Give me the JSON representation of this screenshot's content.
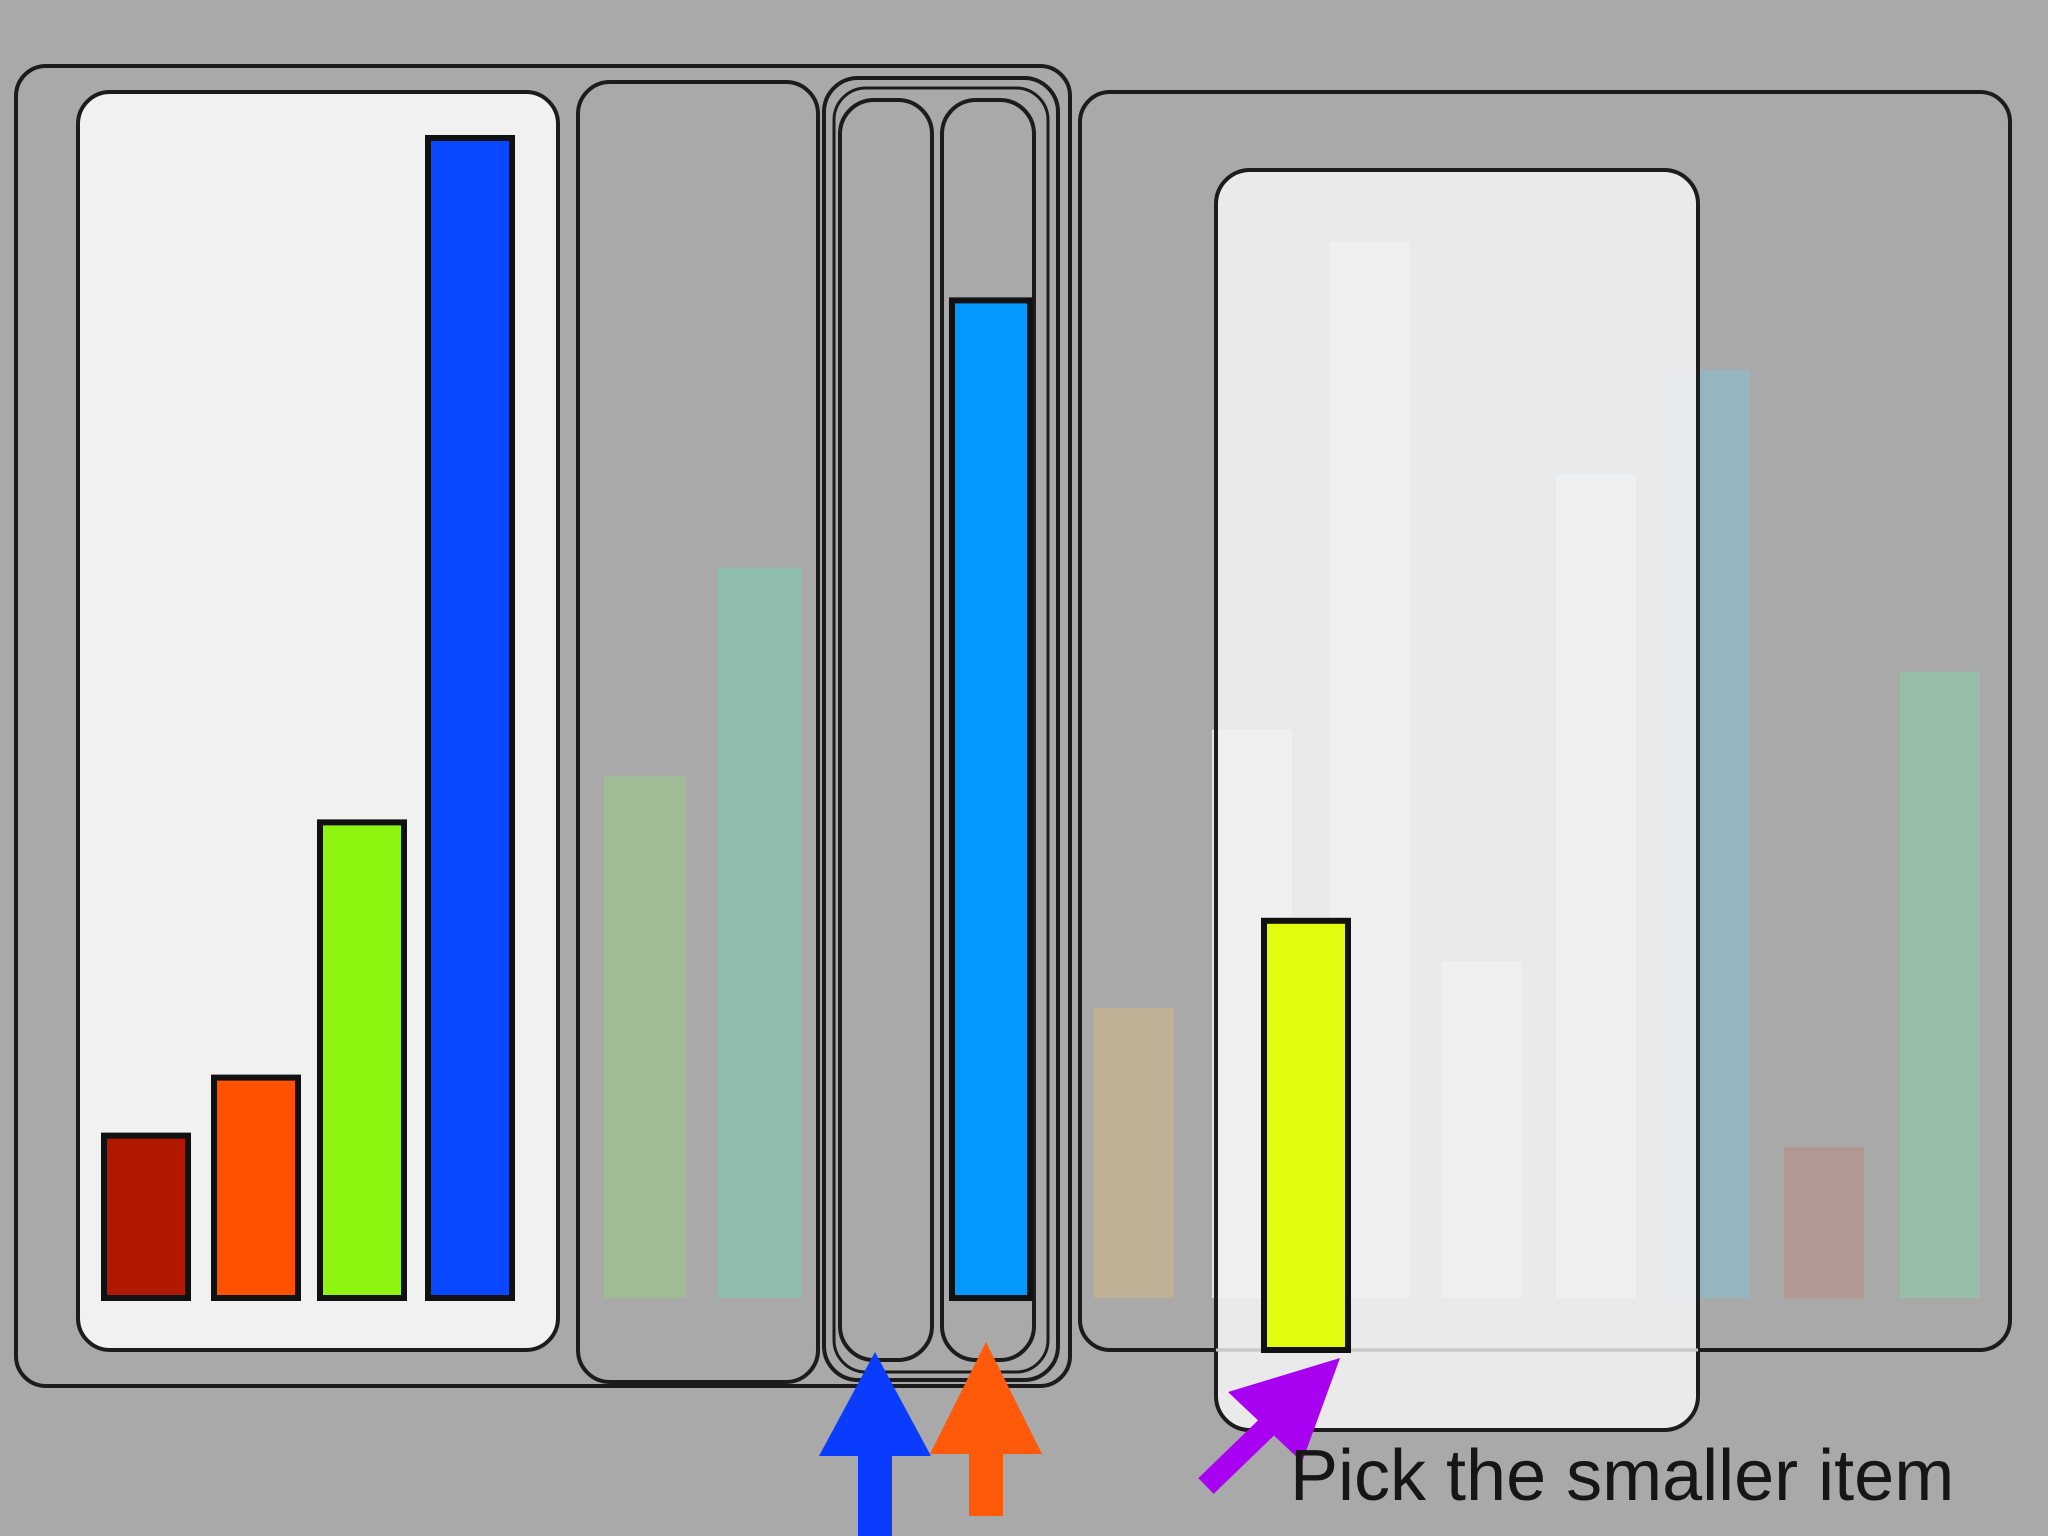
{
  "scene": {
    "caption": "Pick the smaller item",
    "colors": {
      "background": "#a9a9aa",
      "panel_light": "#f1f1f2",
      "outline": "#1c1c1c",
      "pointer_blue": "#0a3cff",
      "pointer_orange": "#ff5a0a",
      "pointer_purple": "#a800f0"
    },
    "groups": [
      {
        "name": "group-sorted-bars",
        "highlight": true,
        "bars": [
          {
            "name": "bar-dark-red",
            "value": 0.14,
            "color": "#b01800",
            "faded": false
          },
          {
            "name": "bar-orange",
            "value": 0.19,
            "color": "#ff5200",
            "faded": false
          },
          {
            "name": "bar-green",
            "value": 0.41,
            "color": "#8ef510",
            "faded": false
          },
          {
            "name": "bar-blue",
            "value": 1.0,
            "color": "#0a48ff",
            "faded": false
          }
        ]
      },
      {
        "name": "group-buffer",
        "highlight": false,
        "bars": [
          {
            "name": "bar-faded-sage",
            "value": 0.45,
            "color": "#9dbf94",
            "faded": true
          },
          {
            "name": "bar-faded-teal",
            "value": 0.63,
            "color": "#8bbfae",
            "faded": true
          }
        ]
      },
      {
        "name": "group-compare",
        "highlight": false,
        "slots": [
          {
            "name": "slot-left",
            "pointer": "pointer_blue",
            "bar": null
          },
          {
            "name": "slot-right",
            "pointer": "pointer_orange",
            "bar": {
              "name": "bar-sky-blue",
              "value": 0.86,
              "color": "#0598ff",
              "faded": false
            }
          }
        ]
      },
      {
        "name": "group-unsorted-bars",
        "highlight": false,
        "bars": [
          {
            "name": "bar-faded-tan",
            "value": 0.25,
            "color": "#c2b292",
            "faded": true
          },
          {
            "name": "bar-faded-white-1",
            "value": 0.49,
            "color": "#eef1ef",
            "faded": true
          },
          {
            "name": "bar-faded-white-2",
            "value": 0.91,
            "color": "#eff2f2",
            "faded": true
          },
          {
            "name": "bar-faded-ivory",
            "value": 0.29,
            "color": "#f2f2ee",
            "faded": true
          },
          {
            "name": "bar-faded-white-3",
            "value": 0.71,
            "color": "#ecf1f1",
            "faded": true
          },
          {
            "name": "bar-faded-steel",
            "value": 0.8,
            "color": "#92b8c3",
            "faded": true
          },
          {
            "name": "bar-faded-rose",
            "value": 0.13,
            "color": "#b4958e",
            "faded": true
          },
          {
            "name": "bar-faded-mint",
            "value": 0.54,
            "color": "#94c2a8",
            "faded": true
          }
        ]
      }
    ],
    "selected": {
      "name": "bar-yellow-candidate",
      "value": 0.37,
      "color": "#e2fc10",
      "pointer": "pointer_purple"
    }
  }
}
